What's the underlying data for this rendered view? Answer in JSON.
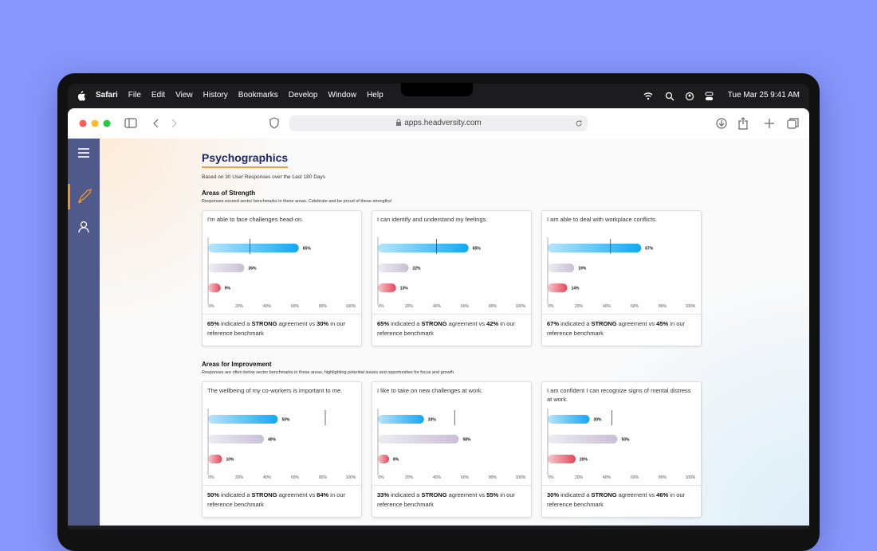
{
  "menu_bar": {
    "app": "Safari",
    "items": [
      "File",
      "Edit",
      "View",
      "History",
      "Bookmarks",
      "Develop",
      "Window",
      "Help"
    ],
    "clock": "Tue Mar 25  9:41 AM"
  },
  "browser": {
    "url": "apps.headversity.com"
  },
  "page": {
    "title": "Psychographics",
    "subtitle": "Based on 30 User Responses over the Last 180 Days"
  },
  "sections": [
    {
      "heading": "Areas of Strength",
      "description": "Responses exceed sector benchmarks in these areas. Celebrate and be proud of these strengths!",
      "cards": [
        {
          "question": "I'm able to face challenges head-on.",
          "chart": {
            "type": "bar",
            "values": [
              65,
              26,
              9
            ],
            "value_labels": [
              "65%",
              "26%",
              "9%"
            ],
            "colors": [
              "#11a8f2",
              "#c8c0d6",
              "#e4475a"
            ],
            "benchmark": 30,
            "xlim": [
              0,
              100
            ],
            "xticks": [
              {
                "value": 0,
                "label": "0%"
              },
              {
                "value": 20,
                "label": "20%"
              },
              {
                "value": 40,
                "label": "40%"
              },
              {
                "value": 60,
                "label": "60%"
              },
              {
                "value": 80,
                "label": "80%"
              },
              {
                "value": 100,
                "label": "100%"
              }
            ]
          },
          "summary": [
            "65%",
            " indicated a ",
            "STRONG",
            " agreement vs ",
            "30%",
            " in our reference benchmark"
          ]
        },
        {
          "question": "I can identify and understand my feelings.",
          "chart": {
            "type": "bar",
            "values": [
              65,
              22,
              13
            ],
            "value_labels": [
              "65%",
              "22%",
              "13%"
            ],
            "colors": [
              "#11a8f2",
              "#c8c0d6",
              "#e4475a"
            ],
            "benchmark": 42,
            "xlim": [
              0,
              100
            ],
            "xticks": [
              {
                "value": 0,
                "label": "0%"
              },
              {
                "value": 20,
                "label": "20%"
              },
              {
                "value": 40,
                "label": "40%"
              },
              {
                "value": 60,
                "label": "60%"
              },
              {
                "value": 80,
                "label": "80%"
              },
              {
                "value": 100,
                "label": "100%"
              }
            ]
          },
          "summary": [
            "65%",
            " indicated a ",
            "STRONG",
            " agreement vs ",
            "42%",
            " in our reference benchmark"
          ]
        },
        {
          "question": "I am able to deal with workplace conflicts.",
          "chart": {
            "type": "bar",
            "values": [
              67,
              19,
              14
            ],
            "value_labels": [
              "67%",
              "19%",
              "14%"
            ],
            "colors": [
              "#11a8f2",
              "#c8c0d6",
              "#e4475a"
            ],
            "benchmark": 45,
            "xlim": [
              0,
              100
            ],
            "xticks": [
              {
                "value": 0,
                "label": "0%"
              },
              {
                "value": 20,
                "label": "20%"
              },
              {
                "value": 40,
                "label": "40%"
              },
              {
                "value": 60,
                "label": "60%"
              },
              {
                "value": 80,
                "label": "80%"
              },
              {
                "value": 100,
                "label": "100%"
              }
            ]
          },
          "summary": [
            "67%",
            " indicated a ",
            "STRONG",
            " agreement vs ",
            "45%",
            " in our reference benchmark"
          ]
        }
      ]
    },
    {
      "heading": "Areas for Improvement",
      "description": "Responses are often below sector benchmarks in these areas, highlighting potential issues and opportunities for focus and growth.",
      "cards": [
        {
          "question": "The wellbeing of my co-workers is important to me.",
          "chart": {
            "type": "bar",
            "values": [
              50,
              40,
              10
            ],
            "value_labels": [
              "50%",
              "40%",
              "10%"
            ],
            "colors": [
              "#11a8f2",
              "#c8c0d6",
              "#e4475a"
            ],
            "benchmark": 84,
            "xlim": [
              0,
              100
            ],
            "xticks": [
              {
                "value": 0,
                "label": "0%"
              },
              {
                "value": 20,
                "label": "20%"
              },
              {
                "value": 40,
                "label": "40%"
              },
              {
                "value": 60,
                "label": "60%"
              },
              {
                "value": 80,
                "label": "80%"
              },
              {
                "value": 100,
                "label": "100%"
              }
            ]
          },
          "summary": [
            "50%",
            " indicated a ",
            "STRONG",
            " agreement vs ",
            "84%",
            " in our reference benchmark"
          ]
        },
        {
          "question": "I like to take on new challenges at work.",
          "chart": {
            "type": "bar",
            "values": [
              33,
              58,
              8
            ],
            "value_labels": [
              "33%",
              "58%",
              "8%"
            ],
            "colors": [
              "#11a8f2",
              "#c8c0d6",
              "#e4475a"
            ],
            "benchmark": 55,
            "xlim": [
              0,
              100
            ],
            "xticks": [
              {
                "value": 0,
                "label": "0%"
              },
              {
                "value": 20,
                "label": "20%"
              },
              {
                "value": 40,
                "label": "40%"
              },
              {
                "value": 60,
                "label": "60%"
              },
              {
                "value": 80,
                "label": "80%"
              },
              {
                "value": 100,
                "label": "100%"
              }
            ]
          },
          "summary": [
            "33%",
            " indicated a ",
            "STRONG",
            " agreement vs ",
            "55%",
            " in our reference benchmark"
          ]
        },
        {
          "question": "I am confident I can recognize signs of mental distress at work.",
          "chart": {
            "type": "bar",
            "values": [
              30,
              50,
              20
            ],
            "value_labels": [
              "30%",
              "50%",
              "20%"
            ],
            "colors": [
              "#11a8f2",
              "#c8c0d6",
              "#e4475a"
            ],
            "benchmark": 46,
            "xlim": [
              0,
              100
            ],
            "xticks": [
              {
                "value": 0,
                "label": "0%"
              },
              {
                "value": 20,
                "label": "20%"
              },
              {
                "value": 40,
                "label": "40%"
              },
              {
                "value": 60,
                "label": "60%"
              },
              {
                "value": 80,
                "label": "80%"
              },
              {
                "value": 100,
                "label": "100%"
              }
            ]
          },
          "summary": [
            "30%",
            " indicated a ",
            "STRONG",
            " agreement vs ",
            "46%",
            " in our reference benchmark"
          ]
        }
      ]
    }
  ]
}
